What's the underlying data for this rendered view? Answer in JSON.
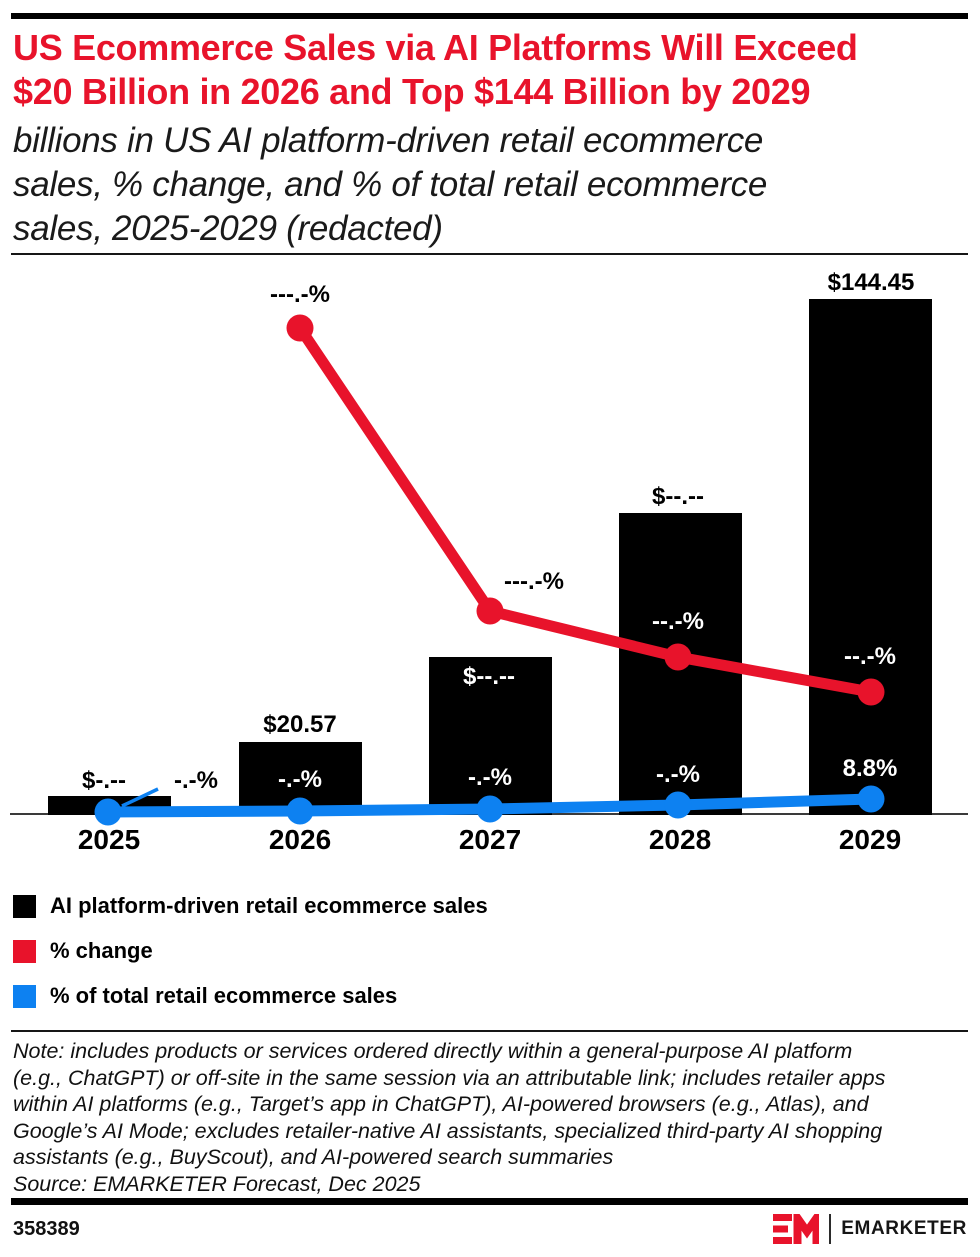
{
  "header": {
    "title": "US Ecommerce Sales via AI Platforms Will Exceed $20 Billion in 2026 and Top $144 Billion by 2029",
    "title_lines": [
      "US Ecommerce Sales via AI Platforms Will Exceed",
      "$20 Billion in 2026 and Top $144 Billion by 2029"
    ],
    "subtitle": "billions in US AI platform-driven retail ecommerce sales, % change, and % of total retail ecommerce sales, 2025-2029 (redacted)",
    "subtitle_lines": [
      "billions in US AI platform-driven retail ecommerce",
      "sales, % change, and % of total retail ecommerce",
      "sales, 2025-2029 (redacted)"
    ]
  },
  "colors": {
    "accent_red": "#e8132b",
    "accent_blue": "#0d81f1",
    "bar_black": "#000000"
  },
  "chart_data": {
    "type": "bar",
    "subtype": "bar+line combo, no visible y-axis, no gridlines, data labels only",
    "categories": [
      "2025",
      "2026",
      "2027",
      "2028",
      "2029"
    ],
    "series": [
      {
        "name": "AI platform-driven retail ecommerce sales",
        "type": "bar",
        "unit": "USD billions",
        "color": "#000000",
        "values": [
          5.3,
          20.57,
          44.3,
          84.5,
          144.45
        ],
        "values_estimated_from_bar_heights": [
          true,
          false,
          true,
          true,
          false
        ],
        "data_labels": [
          "$-.--",
          "$20.57",
          "$--.--",
          "$--.--",
          "$144.45"
        ]
      },
      {
        "name": "% change",
        "type": "line",
        "color": "#e8132b",
        "values": [
          null,
          null,
          null,
          null,
          null
        ],
        "data_labels": [
          "",
          "---.-%",
          "---.-%",
          "--.-%",
          "--.-%"
        ],
        "note": "values redacted in chart; line starts at 2026 and declines through 2029"
      },
      {
        "name": "% of total retail ecommerce sales",
        "type": "line",
        "color": "#0d81f1",
        "values": [
          null,
          null,
          null,
          null,
          8.8
        ],
        "data_labels": [
          "-.-%",
          "-.-%",
          "-.-%",
          "-.-%",
          "8.8%"
        ],
        "note": "values redacted except 2029 = 8.8%"
      }
    ],
    "title": "US Ecommerce Sales via AI Platforms Will Exceed $20 Billion in 2026 and Top $144 Billion by 2029",
    "xlabel": "",
    "ylabel": "billions of US$",
    "ylim": [
      0,
      150
    ],
    "grid": false,
    "legend_position": "below-chart"
  },
  "legend": {
    "items": [
      {
        "label": "AI platform-driven retail ecommerce sales",
        "color": "#000000"
      },
      {
        "label": "% change",
        "color": "#e8132b"
      },
      {
        "label": "% of total retail ecommerce sales",
        "color": "#0d81f1"
      }
    ]
  },
  "note": {
    "full": "Note: includes products or services ordered directly within a general-purpose AI platform (e.g., ChatGPT) or off-site in the same session via an attributable link; includes retailer apps within AI platforms (e.g., Target’s app in ChatGPT), AI-powered browsers (e.g., Atlas), and Google’s AI Mode; excludes retailer-native AI assistants, specialized third-party AI shopping assistants (e.g., BuyScout), and AI-powered search summaries",
    "lines": [
      "Note: includes products or services ordered directly within a general-purpose AI platform",
      "(e.g., ChatGPT) or off-site in the same session via an attributable link; includes retailer apps",
      "within AI platforms (e.g., Target’s app in ChatGPT), AI-powered browsers (e.g., Atlas), and",
      "Google’s AI Mode; excludes retailer-native AI assistants, specialized third-party AI shopping",
      "assistants (e.g., BuyScout), and AI-powered search summaries"
    ],
    "source": "Source: EMARKETER Forecast, Dec 2025"
  },
  "footer": {
    "chart_id": "358389",
    "brand": "EMARKETER",
    "logo": "EM-mark"
  }
}
